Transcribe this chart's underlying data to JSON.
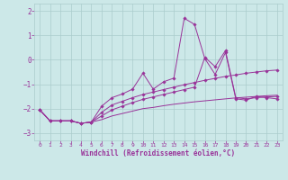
{
  "title": "",
  "xlabel": "Windchill (Refroidissement éolien,°C)",
  "ylabel": "",
  "bg_color": "#cce8e8",
  "grid_color": "#aacccc",
  "line_color": "#993399",
  "xlim": [
    -0.5,
    23.5
  ],
  "ylim": [
    -3.3,
    2.3
  ],
  "yticks": [
    -3,
    -2,
    -1,
    0,
    1,
    2
  ],
  "xticks": [
    0,
    1,
    2,
    3,
    4,
    5,
    6,
    7,
    8,
    9,
    10,
    11,
    12,
    13,
    14,
    15,
    16,
    17,
    18,
    19,
    20,
    21,
    22,
    23
  ],
  "series": {
    "line1": {
      "x": [
        0,
        1,
        2,
        3,
        4,
        5,
        6,
        7,
        8,
        9,
        10,
        11,
        12,
        13,
        14,
        15,
        16,
        17,
        18,
        19,
        20,
        21,
        22,
        23
      ],
      "y": [
        -2.05,
        -2.5,
        -2.5,
        -2.5,
        -2.6,
        -2.55,
        -2.45,
        -2.3,
        -2.2,
        -2.1,
        -2.0,
        -1.95,
        -1.88,
        -1.82,
        -1.77,
        -1.72,
        -1.68,
        -1.64,
        -1.6,
        -1.56,
        -1.53,
        -1.5,
        -1.47,
        -1.45
      ]
    },
    "line2": {
      "x": [
        0,
        1,
        2,
        3,
        4,
        5,
        6,
        7,
        8,
        9,
        10,
        11,
        12,
        13,
        14,
        15,
        16,
        17,
        18,
        19,
        20,
        21,
        22,
        23
      ],
      "y": [
        -2.05,
        -2.5,
        -2.5,
        -2.5,
        -2.6,
        -2.55,
        -1.9,
        -1.55,
        -1.4,
        -1.2,
        -0.55,
        -1.2,
        -0.9,
        -0.75,
        1.7,
        1.45,
        0.05,
        -0.6,
        0.3,
        -1.6,
        -1.65,
        -1.5,
        -1.55,
        -1.6
      ]
    },
    "line3": {
      "x": [
        0,
        1,
        2,
        3,
        4,
        5,
        6,
        7,
        8,
        9,
        10,
        11,
        12,
        13,
        14,
        15,
        16,
        17,
        18,
        19,
        20,
        21,
        22,
        23
      ],
      "y": [
        -2.05,
        -2.5,
        -2.5,
        -2.5,
        -2.6,
        -2.55,
        -2.15,
        -1.85,
        -1.7,
        -1.55,
        -1.42,
        -1.32,
        -1.22,
        -1.12,
        -1.02,
        -0.93,
        -0.84,
        -0.76,
        -0.68,
        -0.62,
        -0.55,
        -0.5,
        -0.45,
        -0.42
      ]
    },
    "line4": {
      "x": [
        0,
        1,
        2,
        3,
        4,
        5,
        6,
        7,
        8,
        9,
        10,
        11,
        12,
        13,
        14,
        15,
        16,
        17,
        18,
        19,
        20,
        21,
        22,
        23
      ],
      "y": [
        -2.05,
        -2.5,
        -2.5,
        -2.5,
        -2.6,
        -2.55,
        -2.3,
        -2.05,
        -1.9,
        -1.75,
        -1.62,
        -1.52,
        -1.42,
        -1.32,
        -1.22,
        -1.12,
        0.1,
        -0.28,
        0.38,
        -1.55,
        -1.6,
        -1.55,
        -1.52,
        -1.5
      ]
    }
  }
}
